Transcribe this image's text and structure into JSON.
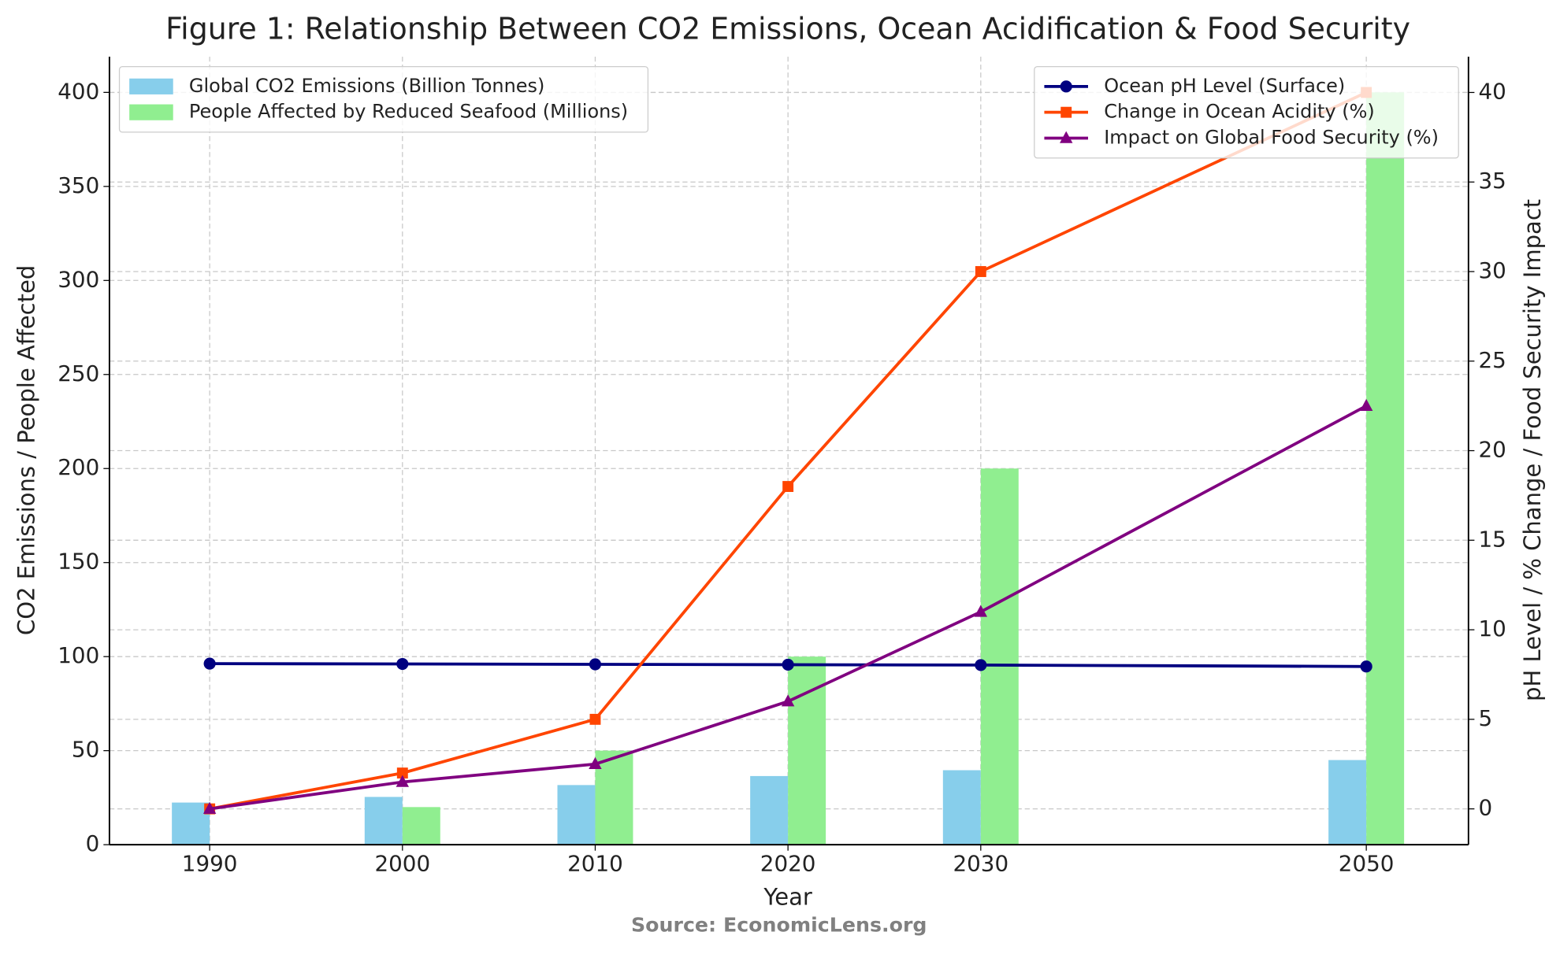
{
  "chart_data": {
    "type": "combo",
    "title": "Figure 1: Relationship Between CO2 Emissions, Ocean Acidification & Food Security",
    "xlabel": "Year",
    "ylabel": "CO2 Emissions / People Affected",
    "y2label": "pH Level / % Change / Food Security Impact",
    "source": "Source: EconomicLens.org",
    "x": [
      1990,
      2000,
      2010,
      2020,
      2030,
      2050
    ],
    "xlim": [
      1984.8,
      2055.3
    ],
    "xticks": [
      1990,
      2000,
      2010,
      2020,
      2030,
      2050
    ],
    "ylim": [
      0,
      419
    ],
    "yticks": [
      0,
      50,
      100,
      150,
      200,
      250,
      300,
      350,
      400
    ],
    "y2lim": [
      -2,
      42
    ],
    "y2ticks": [
      0,
      5,
      10,
      15,
      20,
      25,
      30,
      35,
      40
    ],
    "grid": true,
    "legend_loc": {
      "bar": "upper left",
      "line": "upper right"
    },
    "series": [
      {
        "name": "Global CO2 Emissions (Billion Tonnes)",
        "type": "bar",
        "color": "#87ceeb",
        "values": [
          22.4,
          25.4,
          31.7,
          36.5,
          39.6,
          45
        ]
      },
      {
        "name": "People Affected by Reduced Seafood (Millions)",
        "type": "bar",
        "color": "#90ee90",
        "values": [
          0,
          20,
          50,
          100,
          200,
          400
        ]
      },
      {
        "name": "Ocean pH Level (Surface)",
        "type": "line",
        "axis": "y2",
        "marker": "circle",
        "color": "#000080",
        "values": [
          8.11,
          8.09,
          8.07,
          8.05,
          8.03,
          7.95
        ]
      },
      {
        "name": "Change in Ocean Acidity (%)",
        "type": "line",
        "axis": "y2",
        "marker": "square",
        "color": "#ff4500",
        "values": [
          0,
          2,
          5,
          18,
          30,
          40
        ]
      },
      {
        "name": "Impact on Global Food Security (%)",
        "type": "line",
        "axis": "y2",
        "marker": "triangle",
        "color": "#800080",
        "values": [
          0,
          1.5,
          2.5,
          6,
          11,
          22.5
        ]
      }
    ]
  }
}
